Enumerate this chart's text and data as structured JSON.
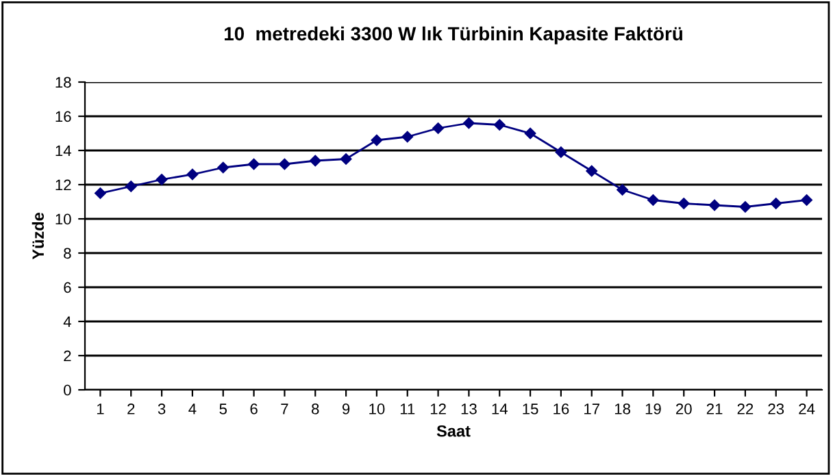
{
  "chart_data": {
    "type": "line",
    "title": "10  metredeki 3300 W lık Türbinin Kapasite Faktörü",
    "xlabel": "Saat",
    "ylabel": "Yüzde",
    "categories": [
      "1",
      "2",
      "3",
      "4",
      "5",
      "6",
      "7",
      "8",
      "9",
      "10",
      "11",
      "12",
      "13",
      "14",
      "15",
      "16",
      "17",
      "18",
      "19",
      "20",
      "21",
      "22",
      "23",
      "24"
    ],
    "series": [
      {
        "color": "#000080",
        "values": [
          11.5,
          11.9,
          12.3,
          12.6,
          13.0,
          13.2,
          13.2,
          13.4,
          13.5,
          14.6,
          14.8,
          15.3,
          15.6,
          15.5,
          15.0,
          13.9,
          12.8,
          11.7,
          11.1,
          10.9,
          10.8,
          10.7,
          10.9,
          11.1
        ]
      }
    ],
    "ylim": [
      0,
      18
    ],
    "yticks": [
      0,
      2,
      4,
      6,
      8,
      10,
      12,
      14,
      16,
      18
    ],
    "grid": "y",
    "marker": "diamond",
    "line_style": "solid",
    "legend": false
  }
}
